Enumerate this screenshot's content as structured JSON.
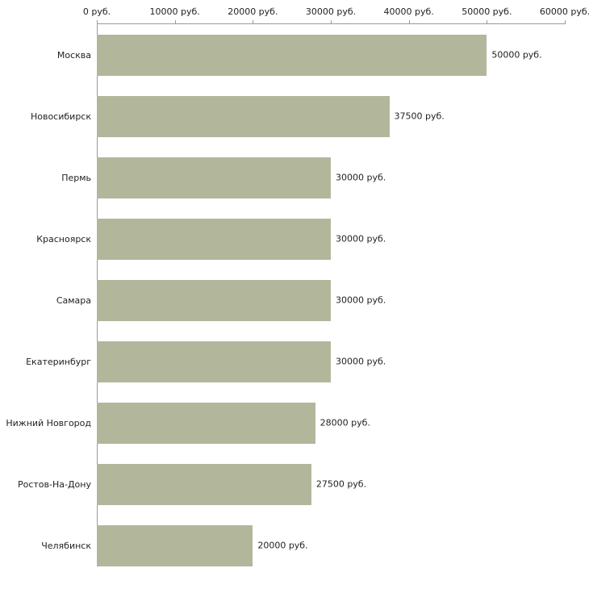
{
  "chart_data": {
    "type": "bar",
    "orientation": "horizontal",
    "title": "",
    "categories": [
      "Москва",
      "Новосибирск",
      "Пермь",
      "Красноярск",
      "Самара",
      "Екатеринбург",
      "Нижний Новгород",
      "Ростов-На-Дону",
      "Челябинск"
    ],
    "values": [
      50000,
      37500,
      30000,
      30000,
      30000,
      30000,
      28000,
      27500,
      20000
    ],
    "value_labels": [
      "50000 руб.",
      "37500 руб.",
      "30000 руб.",
      "30000 руб.",
      "30000 руб.",
      "30000 руб.",
      "28000 руб.",
      "27500 руб.",
      "20000 руб."
    ],
    "x_ticks": [
      0,
      10000,
      20000,
      30000,
      40000,
      50000,
      60000
    ],
    "x_tick_labels": [
      "0 руб.",
      "10000 руб.",
      "20000 руб.",
      "30000 руб.",
      "40000 руб.",
      "50000 руб.",
      "60000 руб."
    ],
    "xlim": [
      0,
      60000
    ],
    "xlabel": "",
    "ylabel": "",
    "grid": false,
    "legend": false,
    "colors": {
      "bar_fill": "#b2b79c",
      "axis": "#9a9a9a",
      "text": "#222222",
      "background": "#ffffff"
    }
  }
}
